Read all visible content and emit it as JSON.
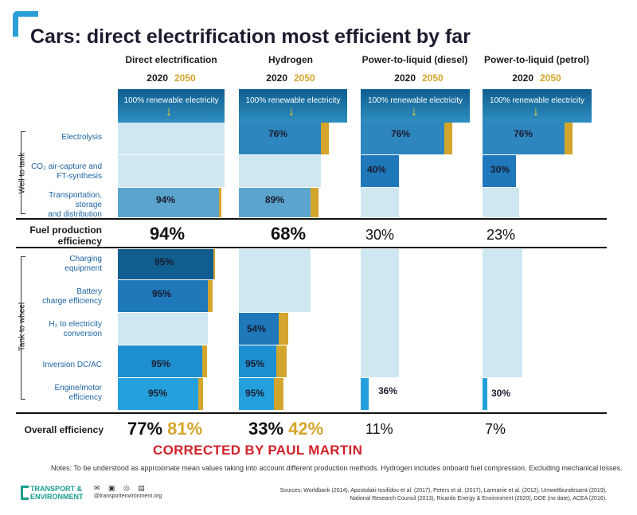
{
  "title": "Cars: direct electrification most efficient by far",
  "columns": [
    {
      "name": "Direct electrification"
    },
    {
      "name": "Hydrogen"
    },
    {
      "name": "Power-to-liquid (diesel)"
    },
    {
      "name": "Power-to-liquid (petrol)"
    }
  ],
  "years": {
    "y2020": "2020",
    "y2050": "2050"
  },
  "renewable_label": "100% renewable electricity",
  "side_labels": {
    "well": "Well to tank",
    "tank": "Tank to wheel"
  },
  "row_labels": {
    "electrolysis": "Electrolysis",
    "co2_line1": "CO₂ air-capture and",
    "co2_line2": "FT-synthesis",
    "transport_line1": "Transportation,",
    "transport_line2": "storage",
    "transport_line3": "and distribution",
    "fuel_line1": "Fuel production",
    "fuel_line2": "efficiency",
    "charging_line1": "Charging",
    "charging_line2": "equipment",
    "battery_line1": "Battery",
    "battery_line2": "charge efficiency",
    "h2_line1": "H₂ to electricity",
    "h2_line2": "conversion",
    "inversion": "Inversion DC/AC",
    "engine_line1": "Engine/motor",
    "engine_line2": "efficiency",
    "overall": "Overall efficiency"
  },
  "chart_data": {
    "type": "bar",
    "title": "Cars: direct electrification most efficient by far",
    "categories": [
      "Direct electrification",
      "Hydrogen",
      "Power-to-liquid (diesel)",
      "Power-to-liquid (petrol)"
    ],
    "steps": [
      {
        "step": "Electrolysis",
        "values": [
          null,
          76,
          76,
          76
        ],
        "labels": [
          "",
          "76%",
          "76%",
          "76%"
        ]
      },
      {
        "step": "CO2 air-capture and FT-synthesis",
        "values": [
          null,
          null,
          40,
          30
        ],
        "labels": [
          "",
          "",
          "40%",
          "30%"
        ]
      },
      {
        "step": "Transportation, storage and distribution",
        "values": [
          94,
          89,
          null,
          null
        ],
        "labels": [
          "94%",
          "89%",
          "",
          ""
        ]
      },
      {
        "step": "Charging equipment",
        "values": [
          95,
          null,
          null,
          null
        ],
        "labels": [
          "95%",
          "",
          "",
          ""
        ]
      },
      {
        "step": "Battery charge efficiency",
        "values": [
          95,
          null,
          null,
          null
        ],
        "labels": [
          "95%",
          "",
          "",
          ""
        ]
      },
      {
        "step": "H2 to electricity conversion",
        "values": [
          null,
          54,
          null,
          null
        ],
        "labels": [
          "",
          "54%",
          "",
          ""
        ]
      },
      {
        "step": "Inversion DC/AC",
        "values": [
          95,
          95,
          null,
          null
        ],
        "labels": [
          "95%",
          "95%",
          "",
          ""
        ]
      },
      {
        "step": "Engine/motor efficiency",
        "values": [
          95,
          95,
          36,
          30
        ],
        "labels": [
          "95%",
          "95%",
          "36%",
          "30%"
        ]
      }
    ],
    "fuel_production_efficiency": [
      "94%",
      "68%",
      "30%",
      "23%"
    ],
    "overall_2020": [
      "77%",
      "33%",
      "11%",
      "7%"
    ],
    "overall_2050": [
      "81%",
      "42%",
      "",
      ""
    ]
  },
  "corrected": "CORRECTED BY PAUL MARTIN",
  "notes": "Notes: To be understood as approximate mean values taking into account different production methods. Hydrogen includes onboard fuel compression. Excluding mechanical losses.",
  "sources_line1": "Sources: Worldbank (2014), Apostolaki-Iosifidou et al. (2017), Peters et al. (2017), Larmanie et al. (2012), Umweltbundesamt (2019),",
  "sources_line2": "National Research Council (2013), Ricardo Energy & Environment (2020), DOE (no date), ACEA (2016).",
  "brand_line1": "TRANSPORT &",
  "brand_line2": "ENVIRONMENT",
  "brand_web": "@transportenvironment.org",
  "colors": {
    "accent_gold": "#d4a52c",
    "dark_blue": "#0f5e8f",
    "light_blue": "#c6e3ef",
    "red": "#d0212a",
    "brand": "#1a9d8c"
  }
}
